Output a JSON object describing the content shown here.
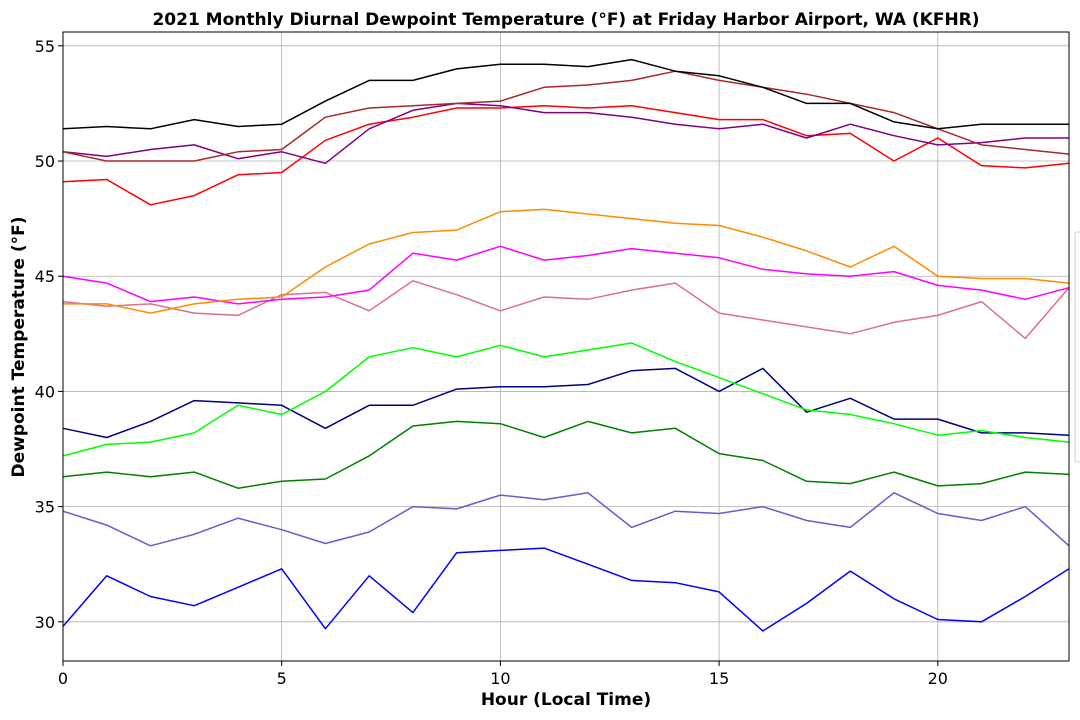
{
  "chart_data": {
    "type": "line",
    "title": "2021 Monthly Diurnal Dewpoint Temperature (°F) at Friday Harbor Airport, WA (KFHR)",
    "xlabel": "Hour (Local Time)",
    "ylabel": "Dewpoint Temperature (°F)",
    "xlim": [
      0,
      23
    ],
    "ylim": [
      28.3,
      55.6
    ],
    "xticks": [
      0,
      5,
      10,
      15,
      20
    ],
    "yticks": [
      30,
      35,
      40,
      45,
      50,
      55
    ],
    "grid": true,
    "legend_position": "right (partially cut off)",
    "x": [
      0,
      1,
      2,
      3,
      4,
      5,
      6,
      7,
      8,
      9,
      10,
      11,
      12,
      13,
      14,
      15,
      16,
      17,
      18,
      19,
      20,
      21,
      22,
      23
    ],
    "series": [
      {
        "color": "#0000ff",
        "values": [
          29.8,
          32.0,
          31.1,
          30.7,
          31.5,
          32.3,
          29.7,
          32.0,
          30.4,
          33.0,
          33.1,
          33.2,
          32.5,
          31.8,
          31.7,
          31.3,
          29.6,
          30.8,
          32.2,
          31.0,
          30.1,
          30.0,
          31.1,
          32.3
        ]
      },
      {
        "color": "#6a5acd",
        "values": [
          34.8,
          34.2,
          33.3,
          33.8,
          34.5,
          34.0,
          33.4,
          33.9,
          35.0,
          34.9,
          35.5,
          35.3,
          35.6,
          34.1,
          34.8,
          34.7,
          35.0,
          34.4,
          34.1,
          35.6,
          34.7,
          34.4,
          35.0,
          33.3
        ]
      },
      {
        "color": "#008000",
        "values": [
          36.3,
          36.5,
          36.3,
          36.5,
          35.8,
          36.1,
          36.2,
          37.2,
          38.5,
          38.7,
          38.6,
          38.0,
          38.7,
          38.2,
          38.4,
          37.3,
          37.0,
          36.1,
          36.0,
          36.5,
          35.9,
          36.0,
          36.5,
          36.4
        ]
      },
      {
        "color": "#000080",
        "values": [
          38.4,
          38.0,
          38.7,
          39.6,
          39.5,
          39.4,
          38.4,
          39.4,
          39.4,
          40.1,
          40.2,
          40.2,
          40.3,
          40.9,
          41.0,
          40.0,
          41.0,
          39.1,
          39.7,
          38.8,
          38.8,
          38.2,
          38.2,
          38.1
        ]
      },
      {
        "color": "#00ff00",
        "values": [
          37.2,
          37.7,
          37.8,
          38.2,
          39.4,
          39.0,
          40.0,
          41.5,
          41.9,
          41.5,
          42.0,
          41.5,
          41.8,
          42.1,
          41.3,
          40.6,
          39.9,
          39.2,
          39.0,
          38.6,
          38.1,
          38.3,
          38.0,
          37.8
        ]
      },
      {
        "color": "#db7093",
        "values": [
          43.9,
          43.7,
          43.8,
          43.4,
          43.3,
          44.2,
          44.3,
          43.5,
          44.8,
          44.2,
          43.5,
          44.1,
          44.0,
          44.4,
          44.7,
          43.4,
          43.1,
          42.8,
          42.5,
          43.0,
          43.3,
          43.9,
          42.3,
          44.5
        ]
      },
      {
        "color": "#ff00ff",
        "values": [
          45.0,
          44.7,
          43.9,
          44.1,
          43.8,
          44.0,
          44.1,
          44.4,
          46.0,
          45.7,
          46.3,
          45.7,
          45.9,
          46.2,
          46.0,
          45.8,
          45.3,
          45.1,
          45.0,
          45.2,
          44.6,
          44.4,
          44.0,
          44.5
        ]
      },
      {
        "color": "#ff8c00",
        "values": [
          43.8,
          43.8,
          43.4,
          43.8,
          44.0,
          44.1,
          45.4,
          46.4,
          46.9,
          47.0,
          47.8,
          47.9,
          47.7,
          47.5,
          47.3,
          47.2,
          46.7,
          46.1,
          45.4,
          46.3,
          45.0,
          44.9,
          44.9,
          44.7
        ]
      },
      {
        "color": "#ff0000",
        "values": [
          49.1,
          49.2,
          48.1,
          48.5,
          49.4,
          49.5,
          50.9,
          51.6,
          51.9,
          52.3,
          52.3,
          52.4,
          52.3,
          52.4,
          52.1,
          51.8,
          51.8,
          51.1,
          51.2,
          50.0,
          51.0,
          49.8,
          49.7,
          49.9
        ]
      },
      {
        "color": "#800080",
        "values": [
          50.4,
          50.2,
          50.5,
          50.7,
          50.1,
          50.4,
          49.9,
          51.4,
          52.2,
          52.5,
          52.4,
          52.1,
          52.1,
          51.9,
          51.6,
          51.4,
          51.6,
          51.0,
          51.6,
          51.1,
          50.7,
          50.8,
          51.0,
          51.0
        ]
      },
      {
        "color": "#a52a2a",
        "values": [
          50.4,
          50.0,
          50.0,
          50.0,
          50.4,
          50.5,
          51.9,
          52.3,
          52.4,
          52.5,
          52.6,
          53.2,
          53.3,
          53.5,
          53.9,
          53.5,
          53.2,
          52.9,
          52.5,
          52.1,
          51.4,
          50.7,
          50.5,
          50.3
        ]
      },
      {
        "color": "#000000",
        "values": [
          51.4,
          51.5,
          51.4,
          51.8,
          51.5,
          51.6,
          52.6,
          53.5,
          53.5,
          54.0,
          54.2,
          54.2,
          54.1,
          54.4,
          53.9,
          53.7,
          53.2,
          52.5,
          52.5,
          51.7,
          51.4,
          51.6,
          51.6,
          51.6
        ]
      }
    ]
  }
}
